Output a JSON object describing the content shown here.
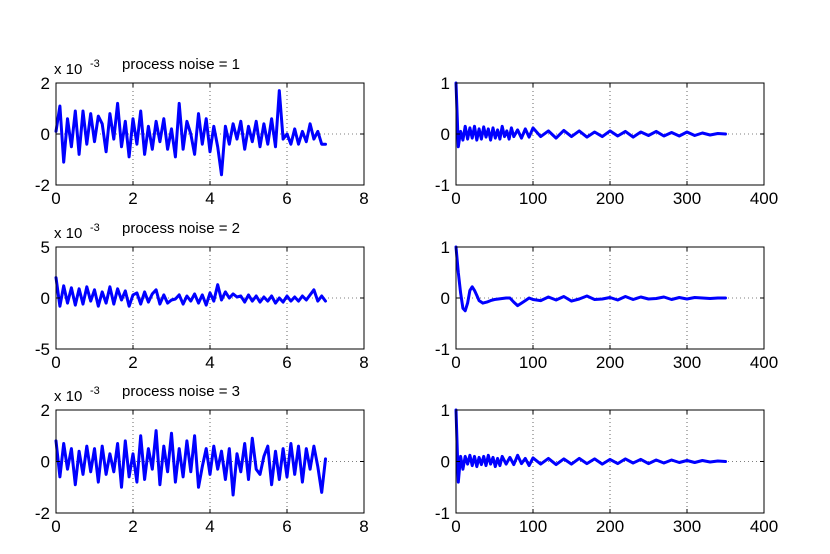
{
  "figure": {
    "line_color": "#0000ff",
    "background": "#ffffff"
  },
  "chart_data": [
    {
      "type": "line",
      "row": 0,
      "col": 0,
      "title": "process noise = 1",
      "y_multiplier": "x 10",
      "y_multiplier_exp": "-3",
      "xlim": [
        0,
        8
      ],
      "ylim": [
        -2,
        2
      ],
      "xticks": [
        0,
        2,
        4,
        6,
        8
      ],
      "yticks": [
        -2,
        0,
        2
      ],
      "grid": true,
      "series": [
        {
          "color": "#0000ff",
          "x": [
            0.0,
            0.1,
            0.2,
            0.3,
            0.4,
            0.5,
            0.6,
            0.7,
            0.8,
            0.9,
            1.0,
            1.1,
            1.2,
            1.3,
            1.4,
            1.5,
            1.6,
            1.7,
            1.8,
            1.9,
            2.0,
            2.1,
            2.2,
            2.3,
            2.4,
            2.5,
            2.6,
            2.7,
            2.8,
            2.9,
            3.0,
            3.1,
            3.2,
            3.3,
            3.4,
            3.5,
            3.6,
            3.7,
            3.8,
            3.9,
            4.0,
            4.1,
            4.2,
            4.3,
            4.4,
            4.5,
            4.6,
            4.7,
            4.8,
            4.9,
            5.0,
            5.1,
            5.2,
            5.3,
            5.4,
            5.5,
            5.6,
            5.7,
            5.8,
            5.9,
            6.0,
            6.1,
            6.2,
            6.3,
            6.4,
            6.5,
            6.6,
            6.7,
            6.8,
            6.9,
            7.0
          ],
          "y": [
            0.1,
            1.1,
            -1.1,
            0.6,
            -0.5,
            0.9,
            -0.8,
            0.9,
            -0.4,
            0.8,
            -0.3,
            0.7,
            0.4,
            -0.7,
            0.8,
            -0.2,
            1.2,
            -0.5,
            0.5,
            -0.9,
            0.6,
            -0.4,
            0.9,
            -0.8,
            0.3,
            -0.6,
            0.5,
            -0.3,
            0.6,
            -0.6,
            0.2,
            -0.9,
            1.2,
            -0.6,
            0.5,
            0.0,
            -0.8,
            0.8,
            -0.4,
            0.6,
            -0.7,
            0.3,
            -0.5,
            -1.6,
            0.3,
            -0.4,
            0.4,
            -0.2,
            0.5,
            -0.6,
            0.3,
            -0.3,
            0.5,
            -0.5,
            0.4,
            -0.4,
            0.6,
            -0.5,
            1.7,
            -0.2,
            0.0,
            -0.4,
            0.2,
            -0.4,
            0.1,
            -0.3,
            0.4,
            -0.2,
            0.1,
            -0.4,
            -0.4
          ]
        }
      ]
    },
    {
      "type": "line",
      "row": 0,
      "col": 1,
      "title": "",
      "xlim": [
        0,
        400
      ],
      "ylim": [
        -1,
        1
      ],
      "xticks": [
        0,
        100,
        200,
        300,
        400
      ],
      "yticks": [
        -1,
        0,
        1
      ],
      "grid": true,
      "series": [
        {
          "color": "#0000ff",
          "x": [
            0,
            3,
            6,
            9,
            12,
            15,
            18,
            21,
            24,
            27,
            30,
            33,
            36,
            39,
            42,
            45,
            48,
            51,
            54,
            57,
            60,
            63,
            66,
            69,
            72,
            75,
            80,
            85,
            90,
            95,
            100,
            110,
            120,
            130,
            140,
            150,
            160,
            170,
            180,
            190,
            200,
            210,
            220,
            230,
            240,
            250,
            260,
            270,
            280,
            290,
            300,
            310,
            320,
            330,
            340,
            350
          ],
          "y": [
            1.0,
            -0.25,
            0.05,
            -0.12,
            0.15,
            -0.1,
            0.12,
            -0.08,
            0.15,
            -0.12,
            0.1,
            -0.1,
            0.14,
            -0.06,
            0.1,
            -0.12,
            0.12,
            -0.08,
            0.08,
            -0.1,
            0.15,
            -0.05,
            0.06,
            -0.1,
            0.12,
            -0.05,
            0.08,
            -0.08,
            0.1,
            -0.06,
            0.12,
            -0.05,
            0.06,
            -0.08,
            0.07,
            -0.05,
            0.06,
            -0.06,
            0.04,
            -0.05,
            0.06,
            -0.04,
            0.05,
            -0.06,
            0.04,
            -0.03,
            0.05,
            -0.04,
            0.03,
            -0.04,
            0.04,
            -0.03,
            0.02,
            -0.02,
            0.01,
            0.0
          ]
        }
      ]
    },
    {
      "type": "line",
      "row": 1,
      "col": 0,
      "title": "process noise = 2",
      "y_multiplier": "x 10",
      "y_multiplier_exp": "-3",
      "xlim": [
        0,
        8
      ],
      "ylim": [
        -5,
        5
      ],
      "xticks": [
        0,
        2,
        4,
        6,
        8
      ],
      "yticks": [
        -5,
        0,
        5
      ],
      "grid": true,
      "series": [
        {
          "color": "#0000ff",
          "x": [
            0.0,
            0.1,
            0.2,
            0.3,
            0.4,
            0.5,
            0.6,
            0.7,
            0.8,
            0.9,
            1.0,
            1.1,
            1.2,
            1.3,
            1.4,
            1.5,
            1.6,
            1.7,
            1.8,
            1.9,
            2.0,
            2.1,
            2.2,
            2.3,
            2.4,
            2.5,
            2.6,
            2.7,
            2.8,
            2.9,
            3.0,
            3.1,
            3.2,
            3.3,
            3.4,
            3.5,
            3.6,
            3.7,
            3.8,
            3.9,
            4.0,
            4.1,
            4.2,
            4.3,
            4.4,
            4.5,
            4.6,
            4.7,
            4.8,
            4.9,
            5.0,
            5.1,
            5.2,
            5.3,
            5.4,
            5.5,
            5.6,
            5.7,
            5.8,
            5.9,
            6.0,
            6.1,
            6.2,
            6.3,
            6.4,
            6.5,
            6.6,
            6.7,
            6.8,
            6.9,
            7.0
          ],
          "y": [
            2.0,
            -0.8,
            1.2,
            -0.5,
            1.0,
            -0.7,
            0.9,
            -0.6,
            1.1,
            -0.3,
            0.8,
            -0.8,
            0.6,
            -0.5,
            1.1,
            -0.6,
            0.9,
            -0.2,
            0.7,
            -0.8,
            0.3,
            0.5,
            -0.6,
            0.6,
            -0.4,
            0.4,
            0.8,
            -0.6,
            0.3,
            -0.5,
            -0.2,
            -0.1,
            0.3,
            -0.6,
            0.2,
            -0.3,
            0.4,
            -0.5,
            0.3,
            -0.7,
            0.5,
            -0.3,
            1.3,
            -0.2,
            0.6,
            0.0,
            0.4,
            0.1,
            0.2,
            -0.4,
            0.3,
            -0.3,
            0.2,
            -0.4,
            0.1,
            -0.3,
            0.2,
            -0.5,
            0.0,
            -0.4,
            0.2,
            -0.3,
            0.1,
            -0.3,
            0.2,
            -0.2,
            0.3,
            0.8,
            -0.3,
            0.2,
            -0.3
          ]
        }
      ]
    },
    {
      "type": "line",
      "row": 1,
      "col": 1,
      "title": "",
      "xlim": [
        0,
        400
      ],
      "ylim": [
        -1,
        1
      ],
      "xticks": [
        0,
        100,
        200,
        300,
        400
      ],
      "yticks": [
        -1,
        0,
        1
      ],
      "grid": true,
      "series": [
        {
          "color": "#0000ff",
          "x": [
            0,
            3,
            6,
            9,
            12,
            15,
            18,
            21,
            24,
            27,
            30,
            35,
            40,
            45,
            50,
            55,
            60,
            65,
            70,
            75,
            80,
            85,
            90,
            95,
            100,
            110,
            120,
            130,
            140,
            150,
            160,
            170,
            180,
            190,
            200,
            210,
            220,
            230,
            240,
            250,
            260,
            270,
            280,
            290,
            300,
            310,
            320,
            330,
            340,
            350
          ],
          "y": [
            1.0,
            0.5,
            0.1,
            -0.2,
            -0.25,
            -0.1,
            0.15,
            0.22,
            0.15,
            0.05,
            -0.05,
            -0.1,
            -0.08,
            -0.05,
            -0.03,
            -0.02,
            -0.01,
            0.0,
            0.0,
            -0.08,
            -0.15,
            -0.1,
            -0.05,
            0.0,
            -0.03,
            -0.05,
            0.02,
            -0.04,
            0.03,
            -0.06,
            -0.02,
            0.04,
            -0.03,
            -0.02,
            0.01,
            -0.04,
            0.03,
            -0.03,
            0.02,
            -0.02,
            -0.01,
            0.02,
            -0.03,
            0.01,
            -0.02,
            0.01,
            0.0,
            -0.01,
            0.0,
            0.0
          ]
        }
      ]
    },
    {
      "type": "line",
      "row": 2,
      "col": 0,
      "title": "process noise = 3",
      "y_multiplier": "x 10",
      "y_multiplier_exp": "-3",
      "xlim": [
        0,
        8
      ],
      "ylim": [
        -2,
        2
      ],
      "xticks": [
        0,
        2,
        4,
        6,
        8
      ],
      "yticks": [
        -2,
        0,
        2
      ],
      "grid": true,
      "series": [
        {
          "color": "#0000ff",
          "x": [
            0.0,
            0.1,
            0.2,
            0.3,
            0.4,
            0.5,
            0.6,
            0.7,
            0.8,
            0.9,
            1.0,
            1.1,
            1.2,
            1.3,
            1.4,
            1.5,
            1.6,
            1.7,
            1.8,
            1.9,
            2.0,
            2.1,
            2.2,
            2.3,
            2.4,
            2.5,
            2.6,
            2.7,
            2.8,
            2.9,
            3.0,
            3.1,
            3.2,
            3.3,
            3.4,
            3.5,
            3.6,
            3.7,
            3.8,
            3.9,
            4.0,
            4.1,
            4.2,
            4.3,
            4.4,
            4.5,
            4.6,
            4.7,
            4.8,
            4.9,
            5.0,
            5.1,
            5.2,
            5.3,
            5.4,
            5.5,
            5.6,
            5.7,
            5.8,
            5.9,
            6.0,
            6.1,
            6.2,
            6.3,
            6.4,
            6.5,
            6.6,
            6.7,
            6.8,
            6.9,
            7.0
          ],
          "y": [
            0.8,
            -0.6,
            0.7,
            -0.3,
            0.5,
            -0.9,
            0.4,
            -0.5,
            0.6,
            -0.4,
            0.5,
            -0.8,
            0.6,
            -0.5,
            0.3,
            -0.4,
            0.7,
            -1.0,
            0.8,
            -0.6,
            0.3,
            -0.8,
            1.0,
            -0.7,
            0.5,
            -0.3,
            1.2,
            -0.9,
            0.6,
            -0.4,
            1.1,
            -0.8,
            0.5,
            -0.6,
            0.8,
            -0.4,
            1.0,
            -1.0,
            -0.2,
            0.5,
            -0.5,
            0.6,
            -0.3,
            0.4,
            -0.7,
            0.5,
            -1.3,
            0.3,
            -0.4,
            0.7,
            -0.7,
            0.9,
            -0.3,
            -0.5,
            0.2,
            0.6,
            -0.9,
            0.4,
            -0.7,
            0.5,
            -0.6,
            0.7,
            -0.5,
            0.6,
            -0.8,
            0.5,
            -0.3,
            0.6,
            -0.2,
            -1.2,
            0.1
          ]
        }
      ]
    },
    {
      "type": "line",
      "row": 2,
      "col": 1,
      "title": "",
      "xlim": [
        0,
        400
      ],
      "ylim": [
        -1,
        1
      ],
      "xticks": [
        0,
        100,
        200,
        300,
        400
      ],
      "yticks": [
        -1,
        0,
        1
      ],
      "grid": true,
      "series": [
        {
          "color": "#0000ff",
          "x": [
            0,
            3,
            6,
            9,
            12,
            15,
            18,
            21,
            24,
            27,
            30,
            33,
            36,
            39,
            42,
            45,
            48,
            51,
            54,
            57,
            60,
            65,
            70,
            75,
            80,
            85,
            90,
            95,
            100,
            110,
            120,
            130,
            140,
            150,
            160,
            170,
            180,
            190,
            200,
            210,
            220,
            230,
            240,
            250,
            260,
            270,
            280,
            290,
            300,
            310,
            320,
            330,
            340,
            350
          ],
          "y": [
            1.0,
            -0.4,
            0.1,
            -0.15,
            0.1,
            -0.05,
            0.12,
            -0.08,
            0.1,
            -0.1,
            0.08,
            -0.06,
            0.1,
            -0.08,
            0.12,
            -0.05,
            0.08,
            -0.1,
            0.06,
            -0.08,
            0.1,
            -0.05,
            0.08,
            -0.06,
            0.12,
            -0.04,
            0.06,
            -0.08,
            0.07,
            -0.05,
            0.06,
            -0.06,
            0.05,
            -0.05,
            0.06,
            -0.04,
            0.05,
            -0.05,
            0.04,
            -0.04,
            0.05,
            -0.03,
            0.04,
            -0.04,
            0.03,
            -0.03,
            0.03,
            -0.02,
            0.02,
            -0.02,
            0.02,
            -0.01,
            0.01,
            0.0
          ]
        }
      ]
    }
  ]
}
